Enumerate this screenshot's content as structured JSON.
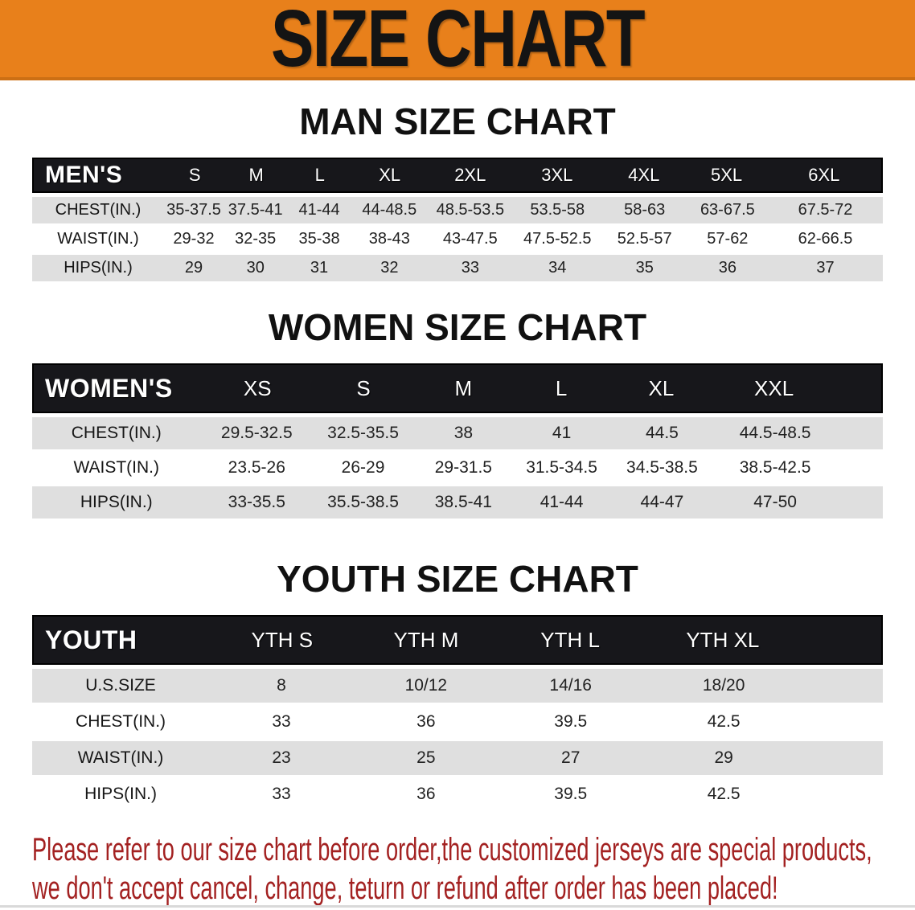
{
  "banner": {
    "title": "SIZE CHART",
    "bg_color": "#E8801B",
    "text_color": "#141414"
  },
  "colors": {
    "table_header_bg": "#17171B",
    "stripe_row_bg": "#DFDFDF",
    "footer_text": "#A32121"
  },
  "sections": [
    {
      "heading": "MAN SIZE CHART",
      "table": {
        "header_label": "MEN'S",
        "columns": [
          "S",
          "M",
          "L",
          "XL",
          "2XL",
          "3XL",
          "4XL",
          "5XL",
          "6XL"
        ],
        "rows": [
          {
            "label": "CHEST(IN.)",
            "values": [
              "35-37.5",
              "37.5-41",
              "41-44",
              "44-48.5",
              "48.5-53.5",
              "53.5-58",
              "58-63",
              "63-67.5",
              "67.5-72"
            ]
          },
          {
            "label": "WAIST(IN.)",
            "values": [
              "29-32",
              "32-35",
              "35-38",
              "38-43",
              "43-47.5",
              "47.5-52.5",
              "52.5-57",
              "57-62",
              "62-66.5"
            ]
          },
          {
            "label": "HIPS(IN.)",
            "values": [
              "29",
              "30",
              "31",
              "32",
              "33",
              "34",
              "35",
              "36",
              "37"
            ]
          }
        ]
      }
    },
    {
      "heading": "WOMEN SIZE CHART",
      "table": {
        "header_label": "WOMEN'S",
        "columns": [
          "XS",
          "S",
          "M",
          "L",
          "XL",
          "XXL"
        ],
        "rows": [
          {
            "label": "CHEST(IN.)",
            "values": [
              "29.5-32.5",
              "32.5-35.5",
              "38",
              "41",
              "44.5",
              "44.5-48.5"
            ]
          },
          {
            "label": "WAIST(IN.)",
            "values": [
              "23.5-26",
              "26-29",
              "29-31.5",
              "31.5-34.5",
              "34.5-38.5",
              "38.5-42.5"
            ]
          },
          {
            "label": "HIPS(IN.)",
            "values": [
              "33-35.5",
              "35.5-38.5",
              "38.5-41",
              "41-44",
              "44-47",
              "47-50"
            ]
          }
        ]
      }
    },
    {
      "heading": "YOUTH SIZE CHART",
      "table": {
        "header_label": "YOUTH",
        "columns": [
          "YTH S",
          "YTH M",
          "YTH L",
          "YTH XL"
        ],
        "rows": [
          {
            "label": "U.S.SIZE",
            "values": [
              "8",
              "10/12",
              "14/16",
              "18/20"
            ]
          },
          {
            "label": "CHEST(IN.)",
            "values": [
              "33",
              "36",
              "39.5",
              "42.5"
            ]
          },
          {
            "label": "WAIST(IN.)",
            "values": [
              "23",
              "25",
              "27",
              "29"
            ]
          },
          {
            "label": "HIPS(IN.)",
            "values": [
              "33",
              "36",
              "39.5",
              "42.5"
            ]
          }
        ]
      }
    }
  ],
  "footer": {
    "line1": "Please refer to our size chart before order,the customized jerseys are special products,",
    "line2": "we don't accept cancel, change, teturn or refund after order has been placed!"
  }
}
